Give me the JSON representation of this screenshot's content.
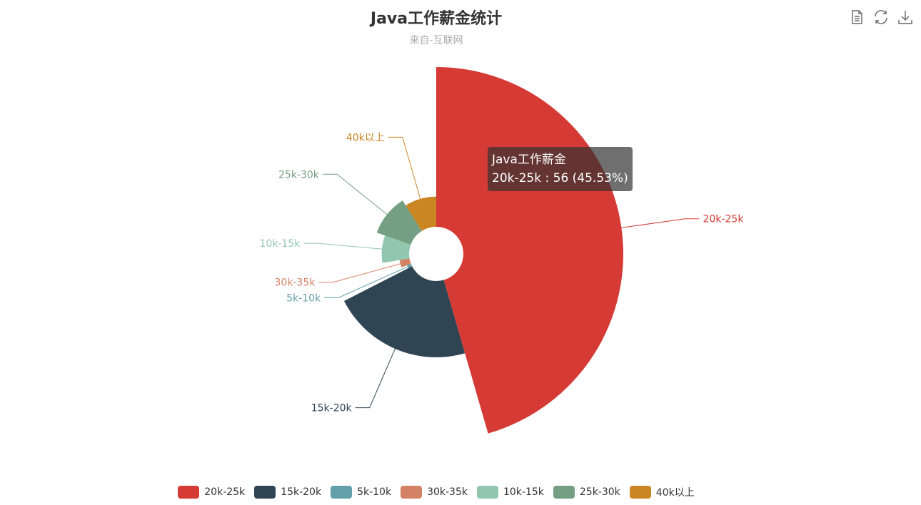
{
  "title": "Java工作薪金统计",
  "subtitle": "来自-互联网",
  "toolbox": {
    "items": [
      {
        "name": "data-view-icon"
      },
      {
        "name": "restore-icon"
      },
      {
        "name": "save-as-image-icon"
      }
    ]
  },
  "tooltip": {
    "series_name": "Java工作薪金",
    "detail": "20k-25k : 56 (45.53%)"
  },
  "chart_data": {
    "type": "pie",
    "rose_type": "radius",
    "series_name": "Java工作薪金",
    "legend_position": "bottom",
    "slices": [
      {
        "name": "20k-25k",
        "value": 56,
        "color": "#d53a35"
      },
      {
        "name": "15k-20k",
        "value": 27,
        "color": "#2f4554"
      },
      {
        "name": "5k-10k",
        "value": 2,
        "color": "#61a0a8"
      },
      {
        "name": "30k-35k",
        "value": 4,
        "color": "#d48265"
      },
      {
        "name": "10k-15k",
        "value": 10,
        "color": "#91c7ae"
      },
      {
        "name": "25k-30k",
        "value": 13,
        "color": "#749f83"
      },
      {
        "name": "40k以上",
        "value": 11,
        "color": "#ca8622"
      }
    ]
  }
}
